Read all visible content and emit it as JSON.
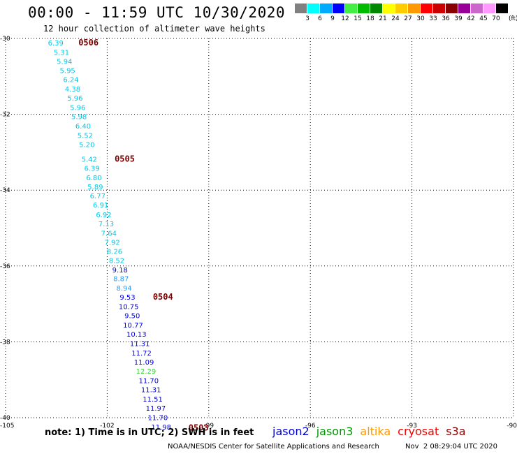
{
  "header": {
    "title": "00:00 - 11:59 UTC 10/30/2020",
    "subtitle": "12 hour collection of altimeter wave heights"
  },
  "color_scale": {
    "unit": "(ft)",
    "bins": [
      {
        "label": "3",
        "color": "#808080"
      },
      {
        "label": "6",
        "color": "#00ffff"
      },
      {
        "label": "9",
        "color": "#00aaff"
      },
      {
        "label": "12",
        "color": "#0000ff"
      },
      {
        "label": "15",
        "color": "#44ee44"
      },
      {
        "label": "18",
        "color": "#00bb00"
      },
      {
        "label": "21",
        "color": "#008800"
      },
      {
        "label": "24",
        "color": "#ffff00"
      },
      {
        "label": "27",
        "color": "#ffcc00"
      },
      {
        "label": "30",
        "color": "#ff9900"
      },
      {
        "label": "33",
        "color": "#ff0000"
      },
      {
        "label": "36",
        "color": "#cc0000"
      },
      {
        "label": "39",
        "color": "#880000"
      },
      {
        "label": "42",
        "color": "#990099"
      },
      {
        "label": "45",
        "color": "#cc66cc"
      },
      {
        "label": "70",
        "color": "#ff99ff"
      },
      {
        "label": "",
        "color": "#000000"
      }
    ]
  },
  "chart_data": {
    "type": "scatter",
    "x_ticks": [
      -105,
      -102,
      -99,
      -96,
      -93,
      -90
    ],
    "y_ticks": [
      -30,
      -32,
      -34,
      -36,
      -38,
      -40
    ],
    "x_tick_labels": [
      "-105",
      "-102",
      "-99",
      "-96",
      "-93",
      "-90"
    ],
    "y_tick_labels": [
      "-30",
      "-32",
      "-34",
      "-36",
      "-38",
      "-40"
    ],
    "xlim": [
      -105,
      -90
    ],
    "ylim": [
      -40,
      -30
    ],
    "grid": true,
    "colors": {
      "cyan": "#00c8e6",
      "lightblue": "#1ea0ff",
      "blue": "#0000dd",
      "green": "#33dd33"
    },
    "points": [
      {
        "lon": -103.75,
        "lat": -30.18,
        "label": "6.39",
        "color": "cyan"
      },
      {
        "lon": -103.58,
        "lat": -30.43,
        "label": "5.31",
        "color": "cyan"
      },
      {
        "lon": -103.49,
        "lat": -30.67,
        "label": "5.94",
        "color": "cyan"
      },
      {
        "lon": -103.4,
        "lat": -30.91,
        "label": "5.95",
        "color": "cyan"
      },
      {
        "lon": -103.3,
        "lat": -31.15,
        "label": "6.24",
        "color": "cyan"
      },
      {
        "lon": -103.25,
        "lat": -31.4,
        "label": "4.38",
        "color": "cyan"
      },
      {
        "lon": -103.18,
        "lat": -31.64,
        "label": "5.96",
        "color": "cyan"
      },
      {
        "lon": -103.1,
        "lat": -31.89,
        "label": "5.96",
        "color": "cyan"
      },
      {
        "lon": -103.06,
        "lat": -32.13,
        "label": "5.98",
        "color": "cyan"
      },
      {
        "lon": -102.94,
        "lat": -32.38,
        "label": "6.40",
        "color": "cyan"
      },
      {
        "lon": -102.88,
        "lat": -32.62,
        "label": "5.52",
        "color": "cyan"
      },
      {
        "lon": -102.83,
        "lat": -32.86,
        "label": "5.20",
        "color": "cyan"
      },
      {
        "lon": -102.76,
        "lat": -33.25,
        "label": "5.42",
        "color": "cyan"
      },
      {
        "lon": -102.68,
        "lat": -33.49,
        "label": "6.39",
        "color": "cyan"
      },
      {
        "lon": -102.62,
        "lat": -33.74,
        "label": "6.80",
        "color": "cyan"
      },
      {
        "lon": -102.58,
        "lat": -33.98,
        "label": "5.89",
        "color": "cyan"
      },
      {
        "lon": -102.51,
        "lat": -34.22,
        "label": "6.77",
        "color": "cyan"
      },
      {
        "lon": -102.42,
        "lat": -34.46,
        "label": "6.91",
        "color": "cyan"
      },
      {
        "lon": -102.33,
        "lat": -34.71,
        "label": "6.92",
        "color": "cyan"
      },
      {
        "lon": -102.26,
        "lat": -34.95,
        "label": "7.13",
        "color": "cyan"
      },
      {
        "lon": -102.18,
        "lat": -35.2,
        "label": "7.64",
        "color": "cyan"
      },
      {
        "lon": -102.08,
        "lat": -35.44,
        "label": "7.92",
        "color": "cyan"
      },
      {
        "lon": -102.01,
        "lat": -35.68,
        "label": "8.26",
        "color": "cyan"
      },
      {
        "lon": -101.95,
        "lat": -35.92,
        "label": "8.52",
        "color": "cyan"
      },
      {
        "lon": -101.85,
        "lat": -36.17,
        "label": "9.18",
        "color": "blue"
      },
      {
        "lon": -101.82,
        "lat": -36.4,
        "label": "8.87",
        "color": "lightblue"
      },
      {
        "lon": -101.73,
        "lat": -36.65,
        "label": "8.94",
        "color": "lightblue"
      },
      {
        "lon": -101.63,
        "lat": -36.89,
        "label": "9.53",
        "color": "blue"
      },
      {
        "lon": -101.66,
        "lat": -37.14,
        "label": "10.75",
        "color": "blue"
      },
      {
        "lon": -101.49,
        "lat": -37.38,
        "label": "9.50",
        "color": "blue"
      },
      {
        "lon": -101.53,
        "lat": -37.62,
        "label": "10.77",
        "color": "blue"
      },
      {
        "lon": -101.43,
        "lat": -37.86,
        "label": "10.13",
        "color": "blue"
      },
      {
        "lon": -101.33,
        "lat": -38.11,
        "label": "11.31",
        "color": "blue"
      },
      {
        "lon": -101.28,
        "lat": -38.36,
        "label": "11.72",
        "color": "blue"
      },
      {
        "lon": -101.21,
        "lat": -38.6,
        "label": "11.09",
        "color": "blue"
      },
      {
        "lon": -101.15,
        "lat": -38.84,
        "label": "12.29",
        "color": "green"
      },
      {
        "lon": -101.07,
        "lat": -39.09,
        "label": "11.70",
        "color": "blue"
      },
      {
        "lon": -101.0,
        "lat": -39.33,
        "label": "11.31",
        "color": "blue"
      },
      {
        "lon": -100.95,
        "lat": -39.58,
        "label": "11.51",
        "color": "blue"
      },
      {
        "lon": -100.86,
        "lat": -39.82,
        "label": "11.97",
        "color": "blue"
      },
      {
        "lon": -100.8,
        "lat": -40.06,
        "label": "11.70",
        "color": "blue"
      },
      {
        "lon": -100.7,
        "lat": -40.31,
        "label": "11.98",
        "color": "blue"
      }
    ],
    "pass_labels": [
      {
        "lon": -102.85,
        "lat": -30.18,
        "label": "0506"
      },
      {
        "lon": -101.78,
        "lat": -33.25,
        "label": "0505"
      },
      {
        "lon": -100.65,
        "lat": -36.89,
        "label": "0504"
      },
      {
        "lon": -99.6,
        "lat": -40.34,
        "label": "0503"
      }
    ]
  },
  "footer": {
    "note": "note: 1) Time is in UTC; 2) SWH is in feet",
    "satellites": [
      {
        "name": "jason2",
        "color": "#0000cc"
      },
      {
        "name": "jason3",
        "color": "#009900"
      },
      {
        "name": "altika",
        "color": "#ff9900"
      },
      {
        "name": "cryosat",
        "color": "#ee0000"
      },
      {
        "name": "s3a",
        "color": "#880000"
      }
    ],
    "credit": "NOAA/NESDIS Center for Satellite Applications and Research",
    "timestamp": "Nov  2 08:29:04 UTC 2020"
  }
}
